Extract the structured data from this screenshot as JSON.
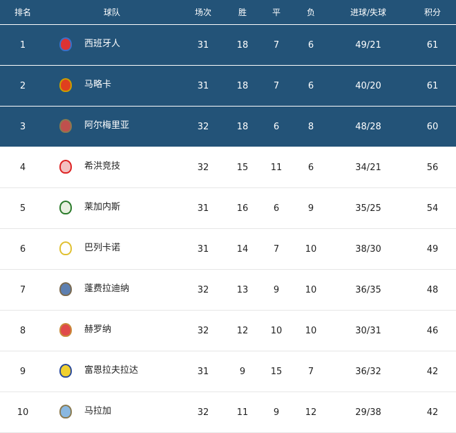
{
  "headers": {
    "rank": "排名",
    "team": "球队",
    "played": "场次",
    "won": "胜",
    "drawn": "平",
    "lost": "负",
    "goals": "进球/失球",
    "points": "积分"
  },
  "colors": {
    "header_bg": "#235378",
    "top_row_bg": "#235378"
  },
  "rows": [
    {
      "rank": "1",
      "team": "西班牙人",
      "played": "31",
      "won": "18",
      "drawn": "7",
      "lost": "6",
      "goals": "49/21",
      "points": "61",
      "logo": "espanyol-crest",
      "c1": "#d33",
      "c2": "#3a6fc8"
    },
    {
      "rank": "2",
      "team": "马略卡",
      "played": "31",
      "won": "18",
      "drawn": "7",
      "lost": "6",
      "goals": "40/20",
      "points": "61",
      "logo": "mallorca-crest",
      "c1": "#e0401e",
      "c2": "#c9a000"
    },
    {
      "rank": "3",
      "team": "阿尔梅里亚",
      "played": "32",
      "won": "18",
      "drawn": "6",
      "lost": "8",
      "goals": "48/28",
      "points": "60",
      "logo": "almeria-crest",
      "c1": "#c0504d",
      "c2": "#8a7a50"
    },
    {
      "rank": "4",
      "team": "希洪竞技",
      "played": "32",
      "won": "15",
      "drawn": "11",
      "lost": "6",
      "goals": "34/21",
      "points": "56",
      "logo": "sporting-gijon-crest",
      "c1": "#f3c0c0",
      "c2": "#d22"
    },
    {
      "rank": "5",
      "team": "莱加内斯",
      "played": "31",
      "won": "16",
      "drawn": "6",
      "lost": "9",
      "goals": "35/25",
      "points": "54",
      "logo": "leganes-crest",
      "c1": "#e8f0e0",
      "c2": "#2a7a2a"
    },
    {
      "rank": "6",
      "team": "巴列卡诺",
      "played": "31",
      "won": "14",
      "drawn": "7",
      "lost": "10",
      "goals": "38/30",
      "points": "49",
      "logo": "rayo-vallecano-crest",
      "c1": "#fff",
      "c2": "#e0c030"
    },
    {
      "rank": "7",
      "team": "蓬费拉迪纳",
      "played": "32",
      "won": "13",
      "drawn": "9",
      "lost": "10",
      "goals": "36/35",
      "points": "48",
      "logo": "ponferradina-crest",
      "c1": "#5d7fb0",
      "c2": "#7a6a50"
    },
    {
      "rank": "8",
      "team": "赫罗纳",
      "played": "32",
      "won": "12",
      "drawn": "10",
      "lost": "10",
      "goals": "30/31",
      "points": "46",
      "logo": "girona-crest",
      "c1": "#e04a4a",
      "c2": "#c98a3a"
    },
    {
      "rank": "9",
      "team": "富恩拉夫拉达",
      "played": "31",
      "won": "9",
      "drawn": "15",
      "lost": "7",
      "goals": "36/32",
      "points": "42",
      "logo": "fuenlabrada-crest",
      "c1": "#f0d030",
      "c2": "#2a4a9a"
    },
    {
      "rank": "10",
      "team": "马拉加",
      "played": "32",
      "won": "11",
      "drawn": "9",
      "lost": "12",
      "goals": "29/38",
      "points": "42",
      "logo": "malaga-crest",
      "c1": "#8ab8e0",
      "c2": "#8a7a50"
    }
  ]
}
